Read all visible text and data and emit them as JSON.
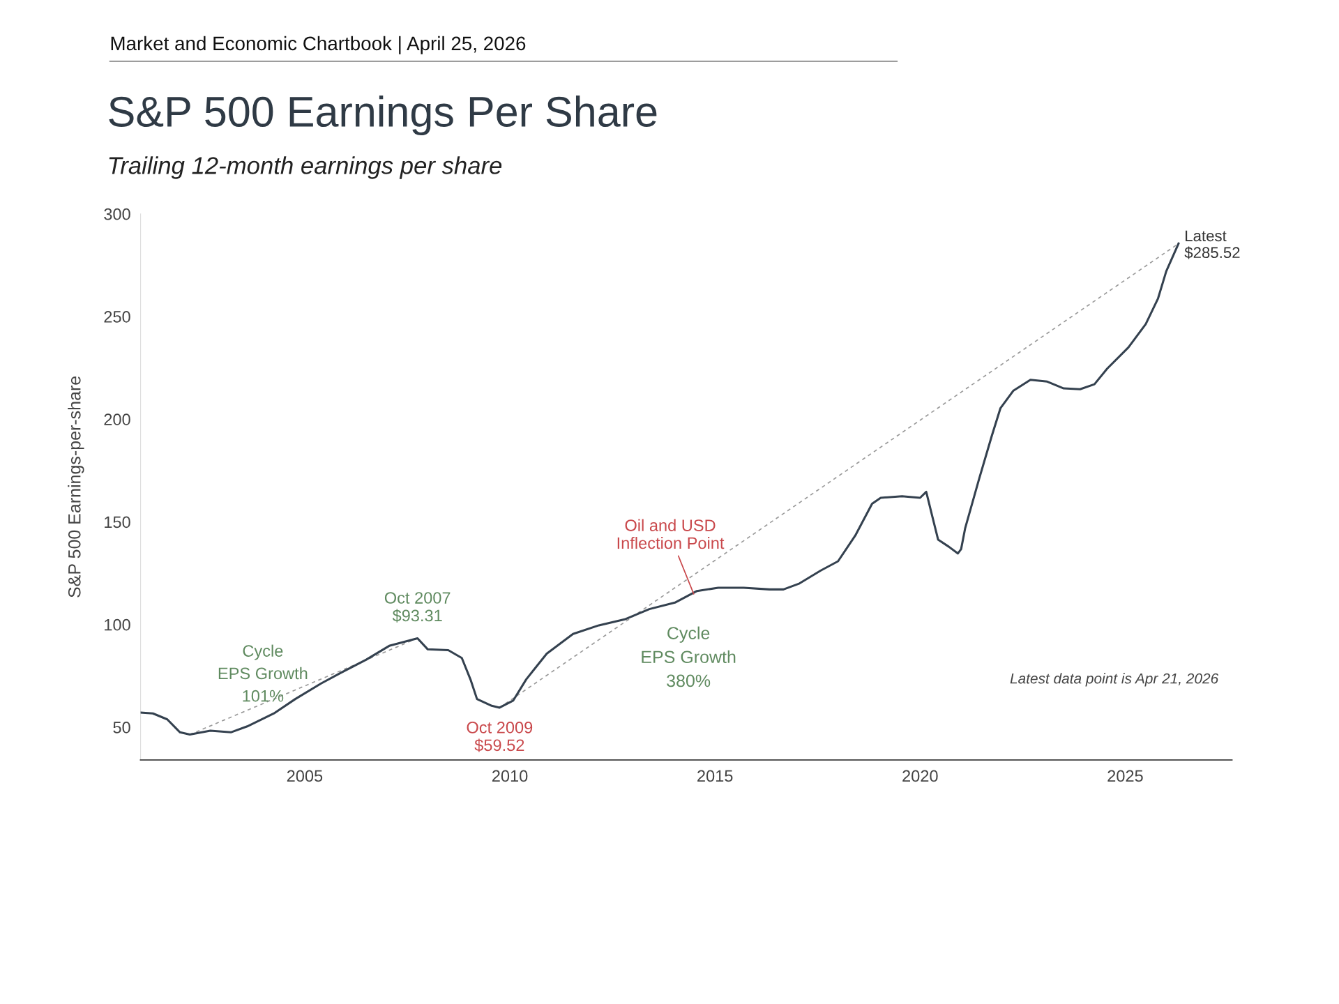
{
  "chart_data": {
    "type": "line",
    "title": "S&P 500 Earnings Per Share",
    "subtitle": "Trailing 12-month earnings per share",
    "ylabel": "S&P 500 Earnings-per-share",
    "xlim": [
      2001.0,
      2027.6
    ],
    "ylim": [
      34,
      300
    ],
    "xticks": [
      2005,
      2010,
      2015,
      2020,
      2025
    ],
    "yticks": [
      50,
      100,
      150,
      200,
      250,
      300
    ],
    "grid": false,
    "legend": false,
    "marker": "none",
    "series": [
      {
        "color": "#34414f",
        "line_style": "solid",
        "x": [
          2001.0,
          2001.3,
          2001.65,
          2001.96,
          2002.2,
          2002.7,
          2003.2,
          2003.6,
          2004.25,
          2004.77,
          2005.4,
          2005.9,
          2006.5,
          2007.06,
          2007.75,
          2008.0,
          2008.5,
          2008.83,
          2009.04,
          2009.2,
          2009.56,
          2009.75,
          2010.08,
          2010.4,
          2010.9,
          2011.54,
          2012.17,
          2012.8,
          2013.4,
          2014.04,
          2014.56,
          2015.08,
          2015.7,
          2016.33,
          2016.67,
          2017.06,
          2017.58,
          2018.0,
          2018.42,
          2018.83,
          2019.04,
          2019.56,
          2020.0,
          2020.15,
          2020.3,
          2020.44,
          2020.7,
          2020.92,
          2021.0,
          2021.1,
          2021.44,
          2021.75,
          2021.96,
          2022.27,
          2022.69,
          2023.1,
          2023.5,
          2023.9,
          2024.25,
          2024.56,
          2025.08,
          2025.5,
          2025.8,
          2026.0,
          2026.3
        ],
        "values": [
          57.1,
          56.7,
          53.8,
          47.5,
          46.4,
          48.3,
          47.5,
          50.4,
          56.7,
          63.7,
          71.3,
          76.7,
          82.9,
          89.6,
          93.31,
          87.9,
          87.5,
          83.7,
          73.3,
          63.7,
          60.4,
          59.52,
          62.9,
          73.3,
          85.8,
          95.4,
          99.6,
          102.5,
          107.5,
          110.8,
          116.3,
          117.9,
          117.9,
          117.1,
          117.1,
          120,
          126.3,
          130.8,
          143.3,
          158.8,
          161.7,
          162.5,
          161.7,
          164.6,
          152.5,
          141.3,
          137.9,
          134.6,
          136.7,
          147,
          171,
          192,
          205.4,
          213.8,
          219.2,
          218.3,
          215,
          214.6,
          217,
          224.6,
          235,
          246.3,
          258.8,
          272,
          285.52
        ]
      },
      {
        "color": "#999999",
        "line_style": "dashed",
        "x": [
          2002.2,
          2007.75
        ],
        "values": [
          46.4,
          93.31
        ]
      },
      {
        "color": "#999999",
        "line_style": "dashed",
        "x": [
          2009.75,
          2026.3
        ],
        "values": [
          59.52,
          285.52
        ]
      }
    ],
    "annotations": [
      "Market and Economic Chartbook | April 25, 2026",
      {
        "text": "Oct 2007\n$93.31",
        "x": 2007.75,
        "y": 93.31
      },
      {
        "text": "Oct 2009\n$59.52",
        "x": 2009.75,
        "y": 59.52
      },
      {
        "text": "Oil and USD\nInflection Point",
        "x": 2014.5,
        "y": 114
      },
      {
        "text": "Latest\n$285.52",
        "x": 2026.3,
        "y": 285.52
      },
      "Cycle\nEPS Growth\n101%",
      "Cycle\nEPS Growth\n380%",
      "Latest data point is Apr 21, 2026"
    ]
  }
}
